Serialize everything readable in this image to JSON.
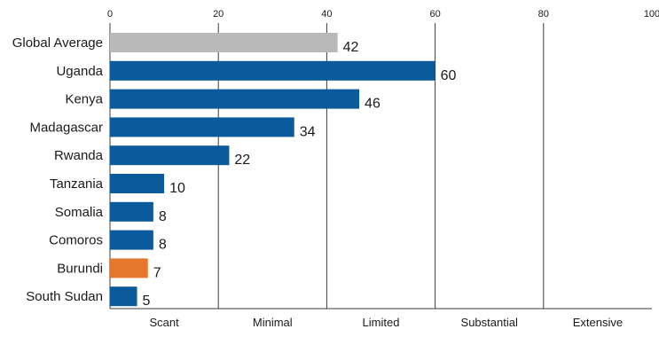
{
  "chart_data": {
    "type": "bar",
    "orientation": "horizontal",
    "categories": [
      "Global Average",
      "Uganda",
      "Kenya",
      "Madagascar",
      "Rwanda",
      "Tanzania",
      "Somalia",
      "Comoros",
      "Burundi",
      "South Sudan"
    ],
    "values": [
      42,
      60,
      46,
      34,
      22,
      10,
      8,
      8,
      7,
      5
    ],
    "xlim": [
      0,
      100
    ],
    "x_ticks": [
      "0",
      "20",
      "40",
      "60",
      "80",
      "100"
    ],
    "x_axis_position": "top",
    "band_labels": [
      "Scant",
      "Minimal",
      "Limited",
      "Substantial",
      "Extensive"
    ],
    "grid": "vertical lines at 20, 40, 60, 80",
    "legend": "none",
    "title": "",
    "xlabel": "",
    "ylabel": "",
    "colors": {
      "default_bar": "#0a5a9c",
      "reference_bar": "#b9b9b9",
      "highlight_bar": "#e8772e",
      "grid": "#3a3a3a",
      "text": "#1a1a1a"
    },
    "bar_color_roles": [
      "reference",
      "default",
      "default",
      "default",
      "default",
      "default",
      "default",
      "default",
      "highlight",
      "default"
    ]
  }
}
